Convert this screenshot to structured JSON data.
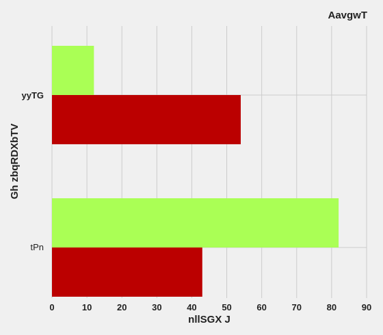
{
  "chart_data": {
    "type": "bar",
    "orientation": "horizontal",
    "title": "AavgwT",
    "xlabel": "nllSGX J",
    "ylabel": "Gh zbqRDXbTV",
    "categories": [
      "yyTG",
      "tPn"
    ],
    "category_label_bold": [
      true,
      false
    ],
    "xlim": [
      0,
      90
    ],
    "xticks": [
      0,
      10,
      20,
      30,
      40,
      50,
      60,
      70,
      80,
      90
    ],
    "grid": true,
    "legend": "none",
    "series": [
      {
        "values": [
          12,
          82
        ],
        "color": "#aaff55"
      },
      {
        "values": [
          54,
          43
        ],
        "color": "#bb0000"
      }
    ]
  }
}
